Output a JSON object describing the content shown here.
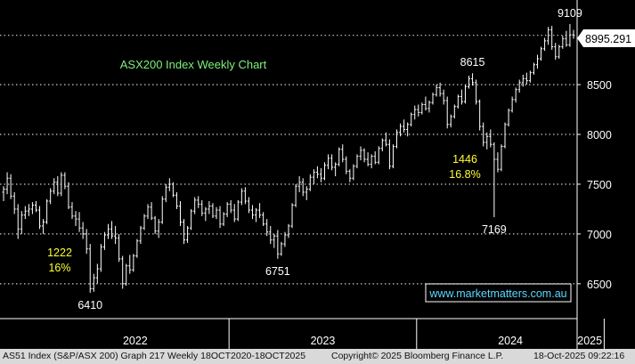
{
  "chart_data": {
    "type": "candlestick",
    "title": "ASX200 Index Weekly Chart",
    "ylim": [
      6150,
      9350
    ],
    "yticks": [
      6500,
      7000,
      7500,
      8000,
      8500
    ],
    "ytick_labels": [
      "6500",
      "7000",
      "7500",
      "8000",
      "8500"
    ],
    "grid": true,
    "xlabels": [
      "2022",
      "2023",
      "2024",
      "2025"
    ],
    "last_price": "8995.291",
    "last_price_value": 8995.291,
    "annotations": [
      {
        "text": "9109",
        "value": 9109
      },
      {
        "text": "8615",
        "value": 8615
      },
      {
        "text": "7169",
        "value": 7169
      },
      {
        "text": "6751",
        "value": 6751
      },
      {
        "text": "6410",
        "value": 6410
      }
    ],
    "callouts": [
      {
        "lines": [
          "1222",
          "16%"
        ]
      },
      {
        "lines": [
          "1446",
          "16.8%"
        ]
      }
    ],
    "watermark": "www.marketmatters.com.au",
    "ohlc": [
      [
        7420,
        7480,
        7330,
        7450
      ],
      [
        7450,
        7620,
        7400,
        7560
      ],
      [
        7560,
        7600,
        7350,
        7380
      ],
      [
        7380,
        7420,
        7200,
        7250
      ],
      [
        7250,
        7300,
        6950,
        7050
      ],
      [
        7050,
        7230,
        7000,
        7190
      ],
      [
        7190,
        7280,
        7150,
        7230
      ],
      [
        7230,
        7300,
        7180,
        7250
      ],
      [
        7250,
        7320,
        7200,
        7290
      ],
      [
        7290,
        7330,
        7220,
        7240
      ],
      [
        7240,
        7280,
        7050,
        7080
      ],
      [
        7080,
        7150,
        7000,
        7120
      ],
      [
        7120,
        7350,
        7100,
        7330
      ],
      [
        7330,
        7460,
        7300,
        7430
      ],
      [
        7430,
        7560,
        7400,
        7520
      ],
      [
        7520,
        7580,
        7380,
        7410
      ],
      [
        7410,
        7620,
        7380,
        7590
      ],
      [
        7590,
        7620,
        7450,
        7480
      ],
      [
        7480,
        7520,
        7250,
        7270
      ],
      [
        7270,
        7320,
        7150,
        7180
      ],
      [
        7180,
        7230,
        7080,
        7150
      ],
      [
        7150,
        7220,
        7020,
        7060
      ],
      [
        7060,
        7120,
        6950,
        7000
      ],
      [
        7000,
        7050,
        6800,
        6850
      ],
      [
        6850,
        6900,
        6410,
        6450
      ],
      [
        6450,
        6600,
        6420,
        6560
      ],
      [
        6560,
        6700,
        6500,
        6650
      ],
      [
        6650,
        6900,
        6620,
        6870
      ],
      [
        6870,
        7020,
        6840,
        6990
      ],
      [
        6990,
        7100,
        6950,
        7050
      ],
      [
        7050,
        7130,
        6950,
        6980
      ],
      [
        6980,
        7080,
        6900,
        6960
      ],
      [
        6960,
        7000,
        6720,
        6750
      ],
      [
        6750,
        6780,
        6450,
        6500
      ],
      [
        6500,
        6700,
        6480,
        6680
      ],
      [
        6680,
        6790,
        6600,
        6640
      ],
      [
        6640,
        6800,
        6620,
        6780
      ],
      [
        6780,
        6950,
        6760,
        6930
      ],
      [
        6930,
        7080,
        6900,
        7060
      ],
      [
        7060,
        7200,
        7040,
        7180
      ],
      [
        7180,
        7300,
        7150,
        7270
      ],
      [
        7270,
        7320,
        7140,
        7160
      ],
      [
        7160,
        7180,
        7000,
        7030
      ],
      [
        7030,
        7150,
        6960,
        7120
      ],
      [
        7120,
        7380,
        7100,
        7350
      ],
      [
        7350,
        7500,
        7320,
        7470
      ],
      [
        7470,
        7560,
        7430,
        7500
      ],
      [
        7500,
        7520,
        7370,
        7390
      ],
      [
        7390,
        7420,
        7250,
        7280
      ],
      [
        7280,
        7330,
        7080,
        7120
      ],
      [
        7120,
        7150,
        6900,
        6940
      ],
      [
        6940,
        7080,
        6910,
        7060
      ],
      [
        7060,
        7250,
        7040,
        7230
      ],
      [
        7230,
        7370,
        7200,
        7340
      ],
      [
        7340,
        7380,
        7260,
        7300
      ],
      [
        7300,
        7340,
        7180,
        7210
      ],
      [
        7210,
        7270,
        7130,
        7250
      ],
      [
        7250,
        7330,
        7200,
        7280
      ],
      [
        7280,
        7310,
        7160,
        7180
      ],
      [
        7180,
        7270,
        7150,
        7240
      ],
      [
        7240,
        7280,
        7060,
        7100
      ],
      [
        7100,
        7220,
        7080,
        7200
      ],
      [
        7200,
        7320,
        7170,
        7300
      ],
      [
        7300,
        7340,
        7210,
        7240
      ],
      [
        7240,
        7300,
        7120,
        7150
      ],
      [
        7150,
        7340,
        7130,
        7320
      ],
      [
        7320,
        7460,
        7290,
        7430
      ],
      [
        7430,
        7470,
        7300,
        7330
      ],
      [
        7330,
        7370,
        7210,
        7240
      ],
      [
        7240,
        7290,
        7150,
        7190
      ],
      [
        7190,
        7260,
        7120,
        7240
      ],
      [
        7240,
        7310,
        7160,
        7190
      ],
      [
        7190,
        7220,
        7080,
        7100
      ],
      [
        7100,
        7150,
        6980,
        7020
      ],
      [
        7020,
        7080,
        6900,
        6940
      ],
      [
        6940,
        7000,
        6860,
        6980
      ],
      [
        6980,
        7040,
        6751,
        6800
      ],
      [
        6800,
        6920,
        6780,
        6900
      ],
      [
        6900,
        7020,
        6870,
        6990
      ],
      [
        6990,
        7100,
        6960,
        7080
      ],
      [
        7080,
        7310,
        7060,
        7290
      ],
      [
        7290,
        7500,
        7270,
        7480
      ],
      [
        7480,
        7580,
        7420,
        7520
      ],
      [
        7520,
        7560,
        7380,
        7420
      ],
      [
        7420,
        7480,
        7340,
        7450
      ],
      [
        7450,
        7600,
        7430,
        7570
      ],
      [
        7570,
        7650,
        7500,
        7620
      ],
      [
        7620,
        7680,
        7560,
        7600
      ],
      [
        7600,
        7660,
        7520,
        7560
      ],
      [
        7560,
        7720,
        7540,
        7690
      ],
      [
        7690,
        7800,
        7650,
        7760
      ],
      [
        7760,
        7800,
        7640,
        7670
      ],
      [
        7670,
        7720,
        7580,
        7700
      ],
      [
        7700,
        7870,
        7680,
        7850
      ],
      [
        7850,
        7900,
        7720,
        7750
      ],
      [
        7750,
        7780,
        7600,
        7630
      ],
      [
        7630,
        7650,
        7520,
        7560
      ],
      [
        7560,
        7700,
        7540,
        7680
      ],
      [
        7680,
        7800,
        7660,
        7780
      ],
      [
        7780,
        7880,
        7740,
        7840
      ],
      [
        7840,
        7860,
        7720,
        7750
      ],
      [
        7750,
        7820,
        7680,
        7700
      ],
      [
        7700,
        7800,
        7660,
        7780
      ],
      [
        7780,
        7830,
        7700,
        7720
      ],
      [
        7720,
        7880,
        7700,
        7860
      ],
      [
        7860,
        7960,
        7830,
        7940
      ],
      [
        7940,
        8020,
        7880,
        7900
      ],
      [
        7900,
        7950,
        7650,
        7680
      ],
      [
        7680,
        7900,
        7660,
        7880
      ],
      [
        7880,
        8050,
        7860,
        8020
      ],
      [
        8020,
        8110,
        7980,
        8080
      ],
      [
        8080,
        8150,
        8020,
        8050
      ],
      [
        8050,
        8120,
        7980,
        8100
      ],
      [
        8100,
        8220,
        8080,
        8200
      ],
      [
        8200,
        8290,
        8150,
        8250
      ],
      [
        8250,
        8300,
        8180,
        8220
      ],
      [
        8220,
        8320,
        8200,
        8300
      ],
      [
        8300,
        8380,
        8240,
        8260
      ],
      [
        8260,
        8340,
        8220,
        8320
      ],
      [
        8320,
        8420,
        8300,
        8400
      ],
      [
        8400,
        8500,
        8380,
        8470
      ],
      [
        8470,
        8520,
        8380,
        8410
      ],
      [
        8410,
        8450,
        8300,
        8340
      ],
      [
        8340,
        8380,
        8060,
        8100
      ],
      [
        8100,
        8200,
        8070,
        8180
      ],
      [
        8180,
        8300,
        8160,
        8280
      ],
      [
        8280,
        8400,
        8260,
        8380
      ],
      [
        8380,
        8450,
        8300,
        8330
      ],
      [
        8330,
        8500,
        8310,
        8480
      ],
      [
        8480,
        8590,
        8460,
        8560
      ],
      [
        8560,
        8615,
        8490,
        8520
      ],
      [
        8520,
        8550,
        8300,
        8330
      ],
      [
        8330,
        8350,
        8040,
        8080
      ],
      [
        8080,
        8120,
        7880,
        7920
      ],
      [
        7920,
        8020,
        7850,
        7980
      ],
      [
        7980,
        8050,
        7870,
        7900
      ],
      [
        7900,
        7920,
        7169,
        7750
      ],
      [
        7750,
        7820,
        7620,
        7650
      ],
      [
        7650,
        7900,
        7630,
        7880
      ],
      [
        7880,
        8120,
        7860,
        8100
      ],
      [
        8100,
        8260,
        8080,
        8240
      ],
      [
        8240,
        8380,
        8220,
        8350
      ],
      [
        8350,
        8470,
        8320,
        8450
      ],
      [
        8450,
        8550,
        8420,
        8520
      ],
      [
        8520,
        8600,
        8480,
        8560
      ],
      [
        8560,
        8620,
        8500,
        8540
      ],
      [
        8540,
        8640,
        8520,
        8620
      ],
      [
        8620,
        8720,
        8600,
        8700
      ],
      [
        8700,
        8800,
        8660,
        8760
      ],
      [
        8760,
        8880,
        8740,
        8860
      ],
      [
        8860,
        8970,
        8840,
        8940
      ],
      [
        8940,
        9080,
        8900,
        9050
      ],
      [
        9050,
        9090,
        8850,
        8880
      ],
      [
        8880,
        8920,
        8750,
        8780
      ],
      [
        8780,
        8900,
        8760,
        8880
      ],
      [
        8880,
        8990,
        8860,
        8960
      ],
      [
        8960,
        9040,
        8880,
        8900
      ],
      [
        8900,
        9109,
        8880,
        9000
      ],
      [
        9000,
        9050,
        8960,
        8995
      ]
    ]
  }
}
